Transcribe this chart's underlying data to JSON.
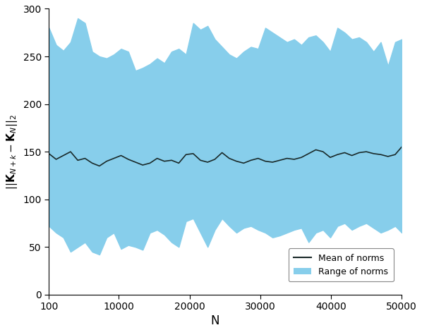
{
  "x_start": 100,
  "x_end": 50000,
  "xlim": [
    100,
    50000
  ],
  "ylim": [
    0,
    300
  ],
  "xticks": [
    100,
    10000,
    20000,
    30000,
    40000,
    50000
  ],
  "yticks": [
    0,
    50,
    100,
    150,
    200,
    250,
    300
  ],
  "xlabel": "N",
  "fill_color": "#87CEEB",
  "fill_alpha": 1.0,
  "mean_color": "#1a2a2a",
  "mean_linewidth": 1.2,
  "legend_mean_label": "Mean of norms",
  "legend_range_label": "Range of norms",
  "figsize": [
    5.98,
    4.68
  ],
  "dpi": 100,
  "mean_x": [
    100,
    1122,
    2143,
    3163,
    4184,
    5204,
    6224,
    7245,
    8265,
    9286,
    10306,
    11327,
    12347,
    13367,
    14388,
    15408,
    16429,
    17449,
    18469,
    19490,
    20510,
    21531,
    22551,
    23571,
    24592,
    25612,
    26633,
    27653,
    28673,
    29694,
    30714,
    31735,
    32755,
    33776,
    34796,
    35816,
    36837,
    37857,
    38878,
    39898,
    40918,
    41939,
    42959,
    43980,
    45000,
    46020,
    47041,
    48061,
    49082,
    50000
  ],
  "mean_y": [
    148,
    142,
    146,
    150,
    141,
    143,
    138,
    135,
    140,
    143,
    146,
    142,
    139,
    136,
    138,
    143,
    140,
    141,
    138,
    147,
    148,
    141,
    139,
    142,
    149,
    143,
    140,
    138,
    141,
    143,
    140,
    139,
    141,
    143,
    142,
    144,
    148,
    152,
    150,
    144,
    147,
    149,
    146,
    149,
    150,
    148,
    147,
    145,
    147,
    155
  ],
  "lower_y": [
    72,
    65,
    60,
    45,
    50,
    55,
    45,
    42,
    60,
    65,
    48,
    52,
    50,
    47,
    65,
    68,
    63,
    55,
    50,
    77,
    80,
    65,
    50,
    68,
    80,
    72,
    65,
    70,
    72,
    68,
    65,
    60,
    62,
    65,
    68,
    70,
    55,
    65,
    68,
    60,
    72,
    75,
    68,
    72,
    75,
    70,
    65,
    68,
    72,
    65
  ],
  "upper_y": [
    280,
    262,
    256,
    265,
    290,
    285,
    255,
    250,
    248,
    252,
    258,
    255,
    235,
    238,
    242,
    248,
    243,
    255,
    258,
    252,
    285,
    278,
    282,
    268,
    260,
    252,
    248,
    255,
    260,
    258,
    280,
    275,
    270,
    265,
    268,
    262,
    270,
    272,
    265,
    255,
    280,
    275,
    268,
    270,
    265,
    255,
    265,
    240,
    265,
    268
  ]
}
